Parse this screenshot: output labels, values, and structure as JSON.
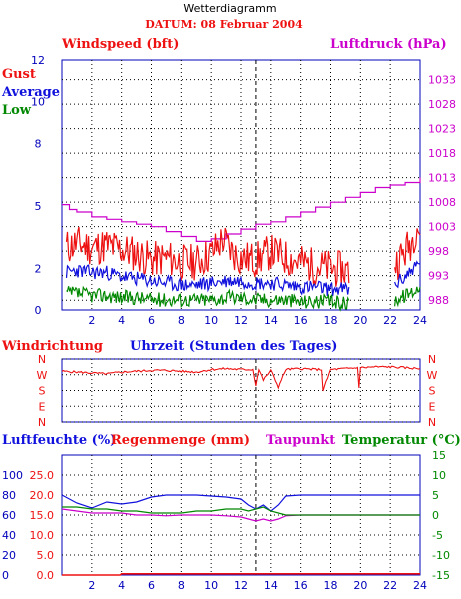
{
  "header": {
    "title": "Wetterdiagramm",
    "date": "DATUM: 08 Februar 2004"
  },
  "colors": {
    "red": "#ee1111",
    "blue": "#1111dd",
    "green": "#008800",
    "magenta": "#cc00cc",
    "axis": "#0000bb",
    "grid": "#000000"
  },
  "chart_data": [
    {
      "id": "wind",
      "type": "line",
      "title_left": "Windspeed (bft)",
      "title_right": "Luftdruck (hPa)",
      "legend": [
        "Gust",
        "Average",
        "Low"
      ],
      "x_ticks": [
        "2",
        "4",
        "6",
        "8",
        "10",
        "12",
        "14",
        "16",
        "18",
        "20",
        "22",
        "24"
      ],
      "xlim": [
        0,
        24
      ],
      "ylim_left": [
        0,
        12
      ],
      "y_ticks_left": [
        "0",
        "2",
        "5",
        "8",
        "10",
        "12"
      ],
      "ylim_right": [
        986,
        1037
      ],
      "y_ticks_right": [
        "988",
        "993",
        "998",
        "1003",
        "1008",
        "1013",
        "1018",
        "1023",
        "1028",
        "1033"
      ],
      "grid": true,
      "series": [
        {
          "name": "Gust",
          "color": "#ee1111",
          "x": [
            0.3,
            1,
            2,
            3,
            4,
            5,
            6,
            7,
            8,
            9,
            10,
            10.8,
            11.5,
            12,
            13,
            14,
            15,
            16,
            17,
            18,
            19,
            19.3,
            22.3,
            23,
            23.5,
            23.8,
            24
          ],
          "y": [
            3.0,
            3.2,
            3.0,
            3.1,
            2.9,
            2.7,
            2.4,
            2.5,
            2.3,
            2.3,
            2.7,
            3.4,
            2.7,
            2.5,
            2.4,
            2.8,
            2.5,
            2.3,
            2.1,
            2.0,
            1.9,
            1.8,
            2.2,
            2.8,
            3.4,
            4.2,
            3.6
          ]
        },
        {
          "name": "Average",
          "color": "#1111dd",
          "x": [
            0.3,
            1,
            2,
            3,
            4,
            5,
            6,
            7,
            8,
            9,
            10,
            11,
            12,
            13,
            14,
            15,
            16,
            17,
            18,
            19,
            19.3,
            22.3,
            23,
            23.5,
            24
          ],
          "y": [
            1.8,
            1.9,
            1.8,
            1.8,
            1.6,
            1.5,
            1.4,
            1.3,
            1.2,
            1.2,
            1.3,
            1.4,
            1.4,
            1.3,
            1.3,
            1.2,
            1.1,
            1.1,
            1.0,
            1.0,
            0.9,
            1.2,
            1.6,
            2.0,
            2.2
          ]
        },
        {
          "name": "Low",
          "color": "#008800",
          "x": [
            0.3,
            1,
            2,
            3,
            4,
            5,
            6,
            7,
            8,
            9,
            10,
            11,
            12,
            13,
            14,
            15,
            16,
            17,
            18,
            19,
            19.3,
            22.3,
            23,
            23.5,
            24
          ],
          "y": [
            0.8,
            0.8,
            0.7,
            0.7,
            0.6,
            0.6,
            0.5,
            0.5,
            0.5,
            0.5,
            0.5,
            0.6,
            0.6,
            0.5,
            0.5,
            0.5,
            0.4,
            0.4,
            0.4,
            0.3,
            0.3,
            0.5,
            0.7,
            0.9,
            1.1
          ]
        },
        {
          "name": "Luftdruck",
          "color": "#cc00cc",
          "axis": "right",
          "x": [
            0,
            0.5,
            1,
            2,
            3,
            4,
            5,
            6,
            7,
            8,
            9,
            10,
            11,
            12,
            13,
            14,
            15,
            16,
            17,
            18,
            19,
            20,
            21,
            22,
            23,
            24
          ],
          "y": [
            1007.5,
            1006.5,
            1006,
            1005,
            1004.5,
            1004,
            1003.5,
            1003,
            1002,
            1001,
            1000,
            1000.5,
            1001.5,
            1002.5,
            1003.5,
            1004,
            1005,
            1006,
            1007,
            1008,
            1009,
            1010,
            1011,
            1011.5,
            1012,
            1013
          ]
        }
      ]
    },
    {
      "id": "direction",
      "type": "line",
      "title_left": "Windrichtung",
      "title_center": "Uhrzeit (Stunden des Tages)",
      "y_ticks": [
        "N",
        "W",
        "S",
        "E",
        "N"
      ],
      "xlim": [
        0,
        24
      ],
      "grid": true,
      "series": [
        {
          "name": "Windrichtung",
          "color": "#ee1111",
          "x": [
            0,
            1,
            2,
            3,
            4,
            5,
            6,
            7,
            8,
            9,
            10,
            11,
            12,
            12.8,
            13,
            13.2,
            13.5,
            14,
            14.5,
            15,
            16,
            17,
            17.4,
            17.5,
            18,
            19,
            19.8,
            19.9,
            20,
            21,
            22,
            23,
            24
          ],
          "y": [
            290,
            285,
            280,
            275,
            285,
            290,
            295,
            295,
            290,
            285,
            300,
            305,
            300,
            300,
            210,
            300,
            240,
            295,
            200,
            300,
            305,
            300,
            300,
            180,
            300,
            305,
            310,
            200,
            310,
            315,
            315,
            310,
            305
          ]
        }
      ]
    },
    {
      "id": "humidity",
      "type": "line",
      "title_left": "Luftfeuchte (%)",
      "title_mid": "Regenmenge (mm)",
      "title_dew": "Taupunkt",
      "title_right": "Temperatur (°C)",
      "x_ticks": [
        "2",
        "4",
        "6",
        "8",
        "10",
        "12",
        "14",
        "16",
        "18",
        "20",
        "22",
        "24"
      ],
      "xlim": [
        0,
        24
      ],
      "y_ticks_hum": [
        "0",
        "20",
        "40",
        "60",
        "80",
        "100"
      ],
      "y_ticks_rain": [
        "0.0",
        "5.0",
        "10.0",
        "15.0",
        "20.0",
        "25.0"
      ],
      "y_ticks_temp": [
        "-15",
        "-10",
        "-5",
        "0",
        "5",
        "10",
        "15"
      ],
      "grid": true,
      "series": [
        {
          "name": "Luftfeuchte",
          "color": "#1111dd",
          "x": [
            0,
            1,
            2,
            3,
            4,
            5,
            6,
            7,
            8,
            9,
            10,
            11,
            12,
            12.5,
            13,
            13.5,
            14,
            14.5,
            15,
            16,
            17,
            18,
            19,
            20,
            21,
            22,
            23,
            24
          ],
          "y": [
            80,
            72,
            67,
            73,
            71,
            73,
            78,
            80,
            80,
            80,
            79,
            78,
            76,
            70,
            66,
            70,
            64,
            70,
            79,
            80,
            80,
            80,
            80,
            80,
            80,
            80,
            80,
            80
          ]
        },
        {
          "name": "Regenmenge",
          "color": "#ee1111",
          "x": [
            0,
            3.9,
            4,
            24
          ],
          "y": [
            0.0,
            0.0,
            0.3,
            0.3
          ]
        },
        {
          "name": "Taupunkt",
          "color": "#cc00cc",
          "x": [
            0,
            1,
            2,
            3,
            4,
            5,
            6,
            7,
            8,
            9,
            10,
            11,
            12,
            12.5,
            13,
            13.5,
            14,
            14.5,
            15,
            16,
            17,
            18,
            19,
            20,
            21,
            22,
            23,
            24
          ],
          "y": [
            1.5,
            1.0,
            0.5,
            0.5,
            0.5,
            0.0,
            0.0,
            -0.2,
            0.0,
            0.0,
            0.0,
            -0.2,
            -0.5,
            -1.0,
            -1.5,
            -1.0,
            -1.5,
            -1.0,
            -0.2,
            0.0,
            0.0,
            0.0,
            0.0,
            0.0,
            0.0,
            0.0,
            0.0,
            0.0
          ]
        },
        {
          "name": "Temperatur",
          "color": "#008800",
          "x": [
            0,
            1,
            2,
            3,
            4,
            5,
            6,
            7,
            8,
            9,
            10,
            11,
            12,
            12.5,
            13,
            13.5,
            14,
            14.5,
            15,
            16,
            17,
            18,
            19,
            20,
            21,
            22,
            23,
            24
          ],
          "y": [
            2.0,
            2.0,
            1.5,
            1.5,
            1.0,
            1.0,
            0.5,
            0.5,
            0.5,
            1.0,
            1.0,
            1.5,
            1.5,
            1.0,
            1.5,
            2.0,
            1.0,
            0.5,
            0.0,
            0.0,
            0.0,
            0.0,
            0.0,
            0.0,
            0.0,
            0.0,
            0.0,
            0.0
          ]
        }
      ]
    }
  ]
}
